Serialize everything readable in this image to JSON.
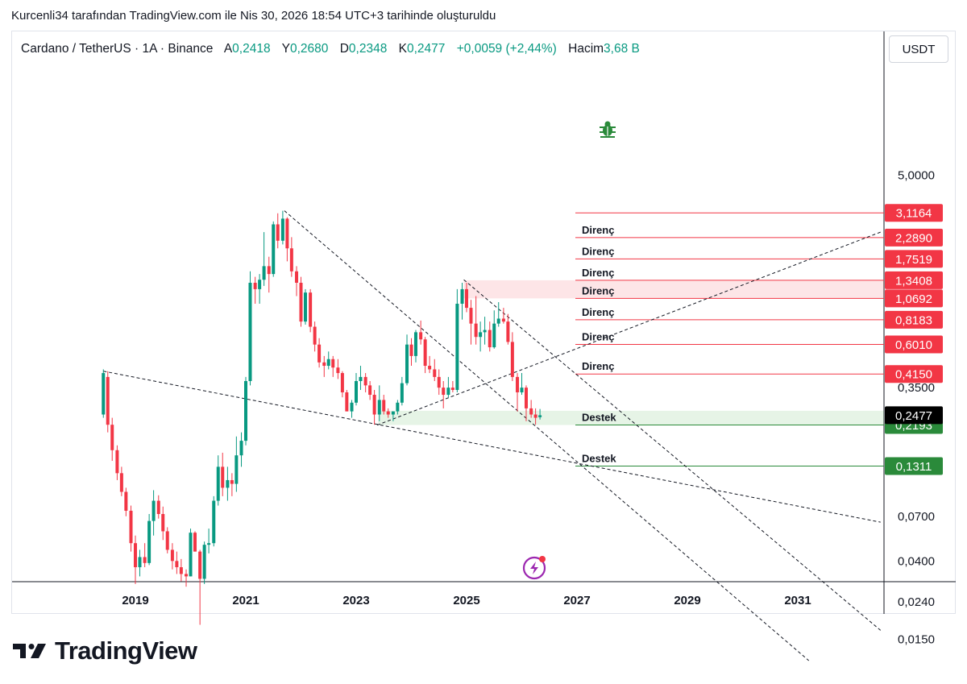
{
  "caption": "Kurcenli34 tarafından TradingView.com ile Nis 30, 2026 18:54 UTC+3 tarihinde oluşturuldu",
  "legend": {
    "symbol": "Cardano / TetherUS · 1A · Binance",
    "open_label": "A",
    "open": "0,2418",
    "high_label": "Y",
    "high": "0,2680",
    "low_label": "D",
    "low": "0,2348",
    "close_label": "K",
    "close": "0,2477",
    "change": "+0,0059 (+2,44%)",
    "volume_label": "Hacim",
    "volume": "3,68 B"
  },
  "currency_button": "USDT",
  "brand": "TradingView",
  "colors": {
    "up": "#089981",
    "down": "#f23645",
    "resistance": "#f23645",
    "support": "#2a8a3a",
    "current": "#000000"
  },
  "chart_data": {
    "type": "candlestick",
    "y_scale": "log",
    "ylim": [
      0.0115,
      7.0
    ],
    "xlim": [
      2017.75,
      2032.55
    ],
    "x_ticks": [
      2019,
      2021,
      2023,
      2025,
      2027,
      2029,
      2031
    ],
    "y_ticks": [
      5.0,
      0.35,
      0.07,
      0.04,
      0.024,
      0.015
    ],
    "y_tick_labels": [
      "5,0000",
      "0,3500",
      "0,0700",
      "0,0400",
      "0,0240",
      "0,0150"
    ],
    "resistance": [
      {
        "label": "",
        "value": 3.1164,
        "text": "3,1164"
      },
      {
        "label": "Direnç",
        "value": 2.289,
        "text": "2,2890"
      },
      {
        "label": "Direnç",
        "value": 1.7519,
        "text": "1,7519"
      },
      {
        "label": "Direnç",
        "value": 1.3408,
        "text": "1,3408"
      },
      {
        "label": "Direnç",
        "value": 1.0692,
        "text": "1,0692"
      },
      {
        "label": "Direnç",
        "value": 0.8183,
        "text": "0,8183"
      },
      {
        "label": "Direnç",
        "value": 0.601,
        "text": "0,6010"
      },
      {
        "label": "Direnç",
        "value": 0.415,
        "text": "0,4150"
      }
    ],
    "support": [
      {
        "label": "Destek",
        "value": 0.2193,
        "text": "0,2193"
      },
      {
        "label": "Destek",
        "value": 0.1311,
        "text": "0,1311"
      }
    ],
    "current_price": {
      "value": 0.2477,
      "text": "0,2477"
    },
    "zones": [
      {
        "kind": "resistance",
        "from": 1.0692,
        "to": 1.3408,
        "x_start": 2024.95
      },
      {
        "kind": "support",
        "from": 0.2193,
        "to": 0.262,
        "x_start": 2023.4
      }
    ],
    "trendlines": [
      {
        "x1": 2018.42,
        "y1": 0.43,
        "x2": 2032.5,
        "y2": 0.065
      },
      {
        "x1": 2021.7,
        "y1": 3.2,
        "x2": 2031.2,
        "y2": 0.0115
      },
      {
        "x1": 2024.95,
        "y1": 1.35,
        "x2": 2032.5,
        "y2": 0.0168
      },
      {
        "x1": 2023.38,
        "y1": 0.219,
        "x2": 2032.5,
        "y2": 2.45
      }
    ],
    "candles": [
      {
        "x": 2018.42,
        "o": 0.25,
        "h": 0.44,
        "l": 0.24,
        "c": 0.42
      },
      {
        "x": 2018.5,
        "o": 0.4,
        "h": 0.43,
        "l": 0.2,
        "c": 0.22
      },
      {
        "x": 2018.58,
        "o": 0.22,
        "h": 0.24,
        "l": 0.14,
        "c": 0.16
      },
      {
        "x": 2018.67,
        "o": 0.16,
        "h": 0.17,
        "l": 0.11,
        "c": 0.12
      },
      {
        "x": 2018.75,
        "o": 0.12,
        "h": 0.13,
        "l": 0.09,
        "c": 0.095
      },
      {
        "x": 2018.83,
        "o": 0.095,
        "h": 0.1,
        "l": 0.07,
        "c": 0.075
      },
      {
        "x": 2018.92,
        "o": 0.075,
        "h": 0.08,
        "l": 0.045,
        "c": 0.05
      },
      {
        "x": 2019.0,
        "o": 0.05,
        "h": 0.055,
        "l": 0.03,
        "c": 0.037
      },
      {
        "x": 2019.08,
        "o": 0.037,
        "h": 0.046,
        "l": 0.033,
        "c": 0.042
      },
      {
        "x": 2019.17,
        "o": 0.042,
        "h": 0.05,
        "l": 0.037,
        "c": 0.039
      },
      {
        "x": 2019.25,
        "o": 0.039,
        "h": 0.072,
        "l": 0.038,
        "c": 0.066
      },
      {
        "x": 2019.33,
        "o": 0.066,
        "h": 0.097,
        "l": 0.055,
        "c": 0.085
      },
      {
        "x": 2019.42,
        "o": 0.085,
        "h": 0.091,
        "l": 0.068,
        "c": 0.072
      },
      {
        "x": 2019.5,
        "o": 0.072,
        "h": 0.079,
        "l": 0.052,
        "c": 0.058
      },
      {
        "x": 2019.58,
        "o": 0.058,
        "h": 0.061,
        "l": 0.044,
        "c": 0.046
      },
      {
        "x": 2019.67,
        "o": 0.046,
        "h": 0.05,
        "l": 0.036,
        "c": 0.04
      },
      {
        "x": 2019.75,
        "o": 0.04,
        "h": 0.045,
        "l": 0.034,
        "c": 0.037
      },
      {
        "x": 2019.83,
        "o": 0.037,
        "h": 0.041,
        "l": 0.031,
        "c": 0.034
      },
      {
        "x": 2019.92,
        "o": 0.034,
        "h": 0.036,
        "l": 0.029,
        "c": 0.033
      },
      {
        "x": 2020.0,
        "o": 0.033,
        "h": 0.06,
        "l": 0.033,
        "c": 0.057
      },
      {
        "x": 2020.08,
        "o": 0.057,
        "h": 0.058,
        "l": 0.045,
        "c": 0.045
      },
      {
        "x": 2020.17,
        "o": 0.045,
        "h": 0.046,
        "l": 0.018,
        "c": 0.032
      },
      {
        "x": 2020.25,
        "o": 0.032,
        "h": 0.051,
        "l": 0.03,
        "c": 0.049
      },
      {
        "x": 2020.33,
        "o": 0.049,
        "h": 0.06,
        "l": 0.044,
        "c": 0.05
      },
      {
        "x": 2020.42,
        "o": 0.05,
        "h": 0.09,
        "l": 0.048,
        "c": 0.085
      },
      {
        "x": 2020.5,
        "o": 0.085,
        "h": 0.15,
        "l": 0.08,
        "c": 0.13
      },
      {
        "x": 2020.58,
        "o": 0.13,
        "h": 0.155,
        "l": 0.09,
        "c": 0.1
      },
      {
        "x": 2020.67,
        "o": 0.1,
        "h": 0.13,
        "l": 0.085,
        "c": 0.11
      },
      {
        "x": 2020.75,
        "o": 0.11,
        "h": 0.12,
        "l": 0.09,
        "c": 0.105
      },
      {
        "x": 2020.83,
        "o": 0.105,
        "h": 0.19,
        "l": 0.095,
        "c": 0.15
      },
      {
        "x": 2020.92,
        "o": 0.15,
        "h": 0.2,
        "l": 0.13,
        "c": 0.18
      },
      {
        "x": 2021.0,
        "o": 0.18,
        "h": 0.4,
        "l": 0.17,
        "c": 0.38
      },
      {
        "x": 2021.08,
        "o": 0.38,
        "h": 1.5,
        "l": 0.36,
        "c": 1.3
      },
      {
        "x": 2021.17,
        "o": 1.3,
        "h": 1.4,
        "l": 1.0,
        "c": 1.2
      },
      {
        "x": 2021.25,
        "o": 1.2,
        "h": 1.45,
        "l": 1.0,
        "c": 1.35
      },
      {
        "x": 2021.33,
        "o": 1.35,
        "h": 2.45,
        "l": 1.25,
        "c": 1.6
      },
      {
        "x": 2021.42,
        "o": 1.6,
        "h": 1.8,
        "l": 1.15,
        "c": 1.45
      },
      {
        "x": 2021.5,
        "o": 1.45,
        "h": 2.8,
        "l": 1.4,
        "c": 2.7
      },
      {
        "x": 2021.58,
        "o": 2.7,
        "h": 3.1,
        "l": 2.0,
        "c": 2.2
      },
      {
        "x": 2021.67,
        "o": 2.2,
        "h": 3.2,
        "l": 2.1,
        "c": 2.9
      },
      {
        "x": 2021.75,
        "o": 2.9,
        "h": 2.95,
        "l": 1.7,
        "c": 2.0
      },
      {
        "x": 2021.83,
        "o": 2.0,
        "h": 2.3,
        "l": 1.4,
        "c": 1.5
      },
      {
        "x": 2021.92,
        "o": 1.5,
        "h": 1.6,
        "l": 1.1,
        "c": 1.3
      },
      {
        "x": 2022.0,
        "o": 1.3,
        "h": 1.4,
        "l": 0.75,
        "c": 0.8
      },
      {
        "x": 2022.08,
        "o": 0.8,
        "h": 1.2,
        "l": 0.77,
        "c": 1.15
      },
      {
        "x": 2022.17,
        "o": 1.15,
        "h": 1.2,
        "l": 0.7,
        "c": 0.75
      },
      {
        "x": 2022.25,
        "o": 0.75,
        "h": 0.8,
        "l": 0.55,
        "c": 0.6
      },
      {
        "x": 2022.33,
        "o": 0.6,
        "h": 0.65,
        "l": 0.45,
        "c": 0.48
      },
      {
        "x": 2022.42,
        "o": 0.48,
        "h": 0.52,
        "l": 0.4,
        "c": 0.46
      },
      {
        "x": 2022.5,
        "o": 0.46,
        "h": 0.55,
        "l": 0.44,
        "c": 0.5
      },
      {
        "x": 2022.58,
        "o": 0.5,
        "h": 0.52,
        "l": 0.4,
        "c": 0.45
      },
      {
        "x": 2022.67,
        "o": 0.45,
        "h": 0.5,
        "l": 0.39,
        "c": 0.42
      },
      {
        "x": 2022.75,
        "o": 0.42,
        "h": 0.43,
        "l": 0.31,
        "c": 0.33
      },
      {
        "x": 2022.83,
        "o": 0.33,
        "h": 0.34,
        "l": 0.26,
        "c": 0.26
      },
      {
        "x": 2022.92,
        "o": 0.26,
        "h": 0.3,
        "l": 0.24,
        "c": 0.29
      },
      {
        "x": 2023.0,
        "o": 0.29,
        "h": 0.42,
        "l": 0.28,
        "c": 0.38
      },
      {
        "x": 2023.08,
        "o": 0.38,
        "h": 0.46,
        "l": 0.34,
        "c": 0.4
      },
      {
        "x": 2023.17,
        "o": 0.4,
        "h": 0.42,
        "l": 0.33,
        "c": 0.36
      },
      {
        "x": 2023.25,
        "o": 0.36,
        "h": 0.38,
        "l": 0.3,
        "c": 0.32
      },
      {
        "x": 2023.33,
        "o": 0.32,
        "h": 0.34,
        "l": 0.22,
        "c": 0.25
      },
      {
        "x": 2023.42,
        "o": 0.25,
        "h": 0.36,
        "l": 0.23,
        "c": 0.3
      },
      {
        "x": 2023.5,
        "o": 0.3,
        "h": 0.32,
        "l": 0.25,
        "c": 0.26
      },
      {
        "x": 2023.58,
        "o": 0.26,
        "h": 0.27,
        "l": 0.24,
        "c": 0.25
      },
      {
        "x": 2023.67,
        "o": 0.25,
        "h": 0.26,
        "l": 0.23,
        "c": 0.26
      },
      {
        "x": 2023.75,
        "o": 0.26,
        "h": 0.3,
        "l": 0.25,
        "c": 0.29
      },
      {
        "x": 2023.83,
        "o": 0.29,
        "h": 0.4,
        "l": 0.28,
        "c": 0.37
      },
      {
        "x": 2023.92,
        "o": 0.37,
        "h": 0.68,
        "l": 0.36,
        "c": 0.6
      },
      {
        "x": 2024.0,
        "o": 0.6,
        "h": 0.65,
        "l": 0.46,
        "c": 0.52
      },
      {
        "x": 2024.08,
        "o": 0.52,
        "h": 0.72,
        "l": 0.48,
        "c": 0.7
      },
      {
        "x": 2024.17,
        "o": 0.7,
        "h": 0.81,
        "l": 0.6,
        "c": 0.64
      },
      {
        "x": 2024.25,
        "o": 0.64,
        "h": 0.66,
        "l": 0.42,
        "c": 0.46
      },
      {
        "x": 2024.33,
        "o": 0.46,
        "h": 0.52,
        "l": 0.42,
        "c": 0.44
      },
      {
        "x": 2024.42,
        "o": 0.44,
        "h": 0.5,
        "l": 0.38,
        "c": 0.4
      },
      {
        "x": 2024.5,
        "o": 0.4,
        "h": 0.44,
        "l": 0.32,
        "c": 0.35
      },
      {
        "x": 2024.58,
        "o": 0.35,
        "h": 0.38,
        "l": 0.27,
        "c": 0.32
      },
      {
        "x": 2024.67,
        "o": 0.32,
        "h": 0.4,
        "l": 0.31,
        "c": 0.35
      },
      {
        "x": 2024.75,
        "o": 0.35,
        "h": 0.38,
        "l": 0.33,
        "c": 0.34
      },
      {
        "x": 2024.83,
        "o": 0.34,
        "h": 1.2,
        "l": 0.33,
        "c": 1.0
      },
      {
        "x": 2024.92,
        "o": 1.0,
        "h": 1.3,
        "l": 0.82,
        "c": 1.2
      },
      {
        "x": 2025.0,
        "o": 1.2,
        "h": 1.3,
        "l": 0.9,
        "c": 0.95
      },
      {
        "x": 2025.08,
        "o": 0.95,
        "h": 1.05,
        "l": 0.6,
        "c": 0.78
      },
      {
        "x": 2025.17,
        "o": 0.78,
        "h": 1.1,
        "l": 0.6,
        "c": 0.66
      },
      {
        "x": 2025.25,
        "o": 0.66,
        "h": 0.8,
        "l": 0.55,
        "c": 0.7
      },
      {
        "x": 2025.33,
        "o": 0.7,
        "h": 0.85,
        "l": 0.6,
        "c": 0.72
      },
      {
        "x": 2025.42,
        "o": 0.72,
        "h": 0.8,
        "l": 0.55,
        "c": 0.58
      },
      {
        "x": 2025.5,
        "o": 0.58,
        "h": 0.92,
        "l": 0.57,
        "c": 0.78
      },
      {
        "x": 2025.58,
        "o": 0.78,
        "h": 1.02,
        "l": 0.75,
        "c": 0.83
      },
      {
        "x": 2025.67,
        "o": 0.83,
        "h": 0.95,
        "l": 0.78,
        "c": 0.8
      },
      {
        "x": 2025.75,
        "o": 0.8,
        "h": 0.88,
        "l": 0.6,
        "c": 0.62
      },
      {
        "x": 2025.83,
        "o": 0.62,
        "h": 0.7,
        "l": 0.38,
        "c": 0.4
      },
      {
        "x": 2025.92,
        "o": 0.4,
        "h": 0.42,
        "l": 0.26,
        "c": 0.33
      },
      {
        "x": 2026.0,
        "o": 0.33,
        "h": 0.42,
        "l": 0.32,
        "c": 0.35
      },
      {
        "x": 2026.08,
        "o": 0.35,
        "h": 0.36,
        "l": 0.23,
        "c": 0.27
      },
      {
        "x": 2026.17,
        "o": 0.27,
        "h": 0.3,
        "l": 0.24,
        "c": 0.25
      },
      {
        "x": 2026.25,
        "o": 0.25,
        "h": 0.27,
        "l": 0.22,
        "c": 0.24
      },
      {
        "x": 2026.33,
        "o": 0.2418,
        "h": 0.268,
        "l": 0.2348,
        "c": 0.2477
      }
    ]
  }
}
